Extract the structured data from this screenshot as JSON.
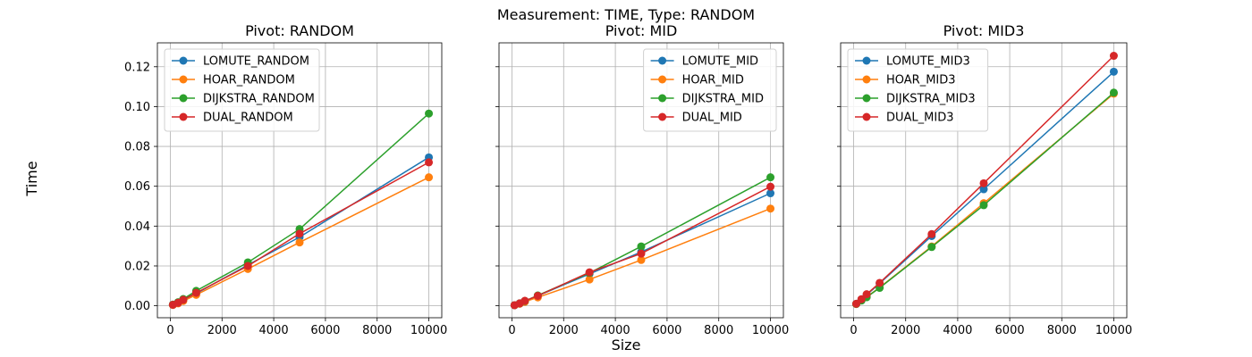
{
  "figure": {
    "suptitle": "Measurement: TIME, Type: RANDOM",
    "xlabel": "Size",
    "ylabel": "Time"
  },
  "colors": {
    "blue": "#1f77b4",
    "orange": "#ff7f0e",
    "green": "#2ca02c",
    "red": "#d62728",
    "grid": "#b0b0b0"
  },
  "chart_data": [
    {
      "type": "line",
      "title": "Pivot: RANDOM",
      "xlabel": "Size",
      "ylabel": "Time",
      "xlim": [
        -500,
        10500
      ],
      "ylim": [
        -0.006,
        0.132
      ],
      "xticks": [
        0,
        2000,
        4000,
        6000,
        8000,
        10000
      ],
      "yticks": [
        0.0,
        0.02,
        0.04,
        0.06,
        0.08,
        0.1,
        0.12
      ],
      "ytick_labels": [
        "0.00",
        "0.02",
        "0.04",
        "0.06",
        "0.08",
        "0.10",
        "0.12"
      ],
      "grid": true,
      "legend_position": "upper left",
      "x": [
        100,
        300,
        500,
        1000,
        3000,
        5000,
        10000
      ],
      "series": [
        {
          "name": "LOMUTE_RANDOM",
          "color": "#1f77b4",
          "values": [
            0.0005,
            0.0014,
            0.0028,
            0.0062,
            0.0205,
            0.0345,
            0.0745
          ]
        },
        {
          "name": "HOAR_RANDOM",
          "color": "#ff7f0e",
          "values": [
            0.0004,
            0.0012,
            0.0024,
            0.0055,
            0.0185,
            0.0318,
            0.0645
          ]
        },
        {
          "name": "DIJKSTRA_RANDOM",
          "color": "#2ca02c",
          "values": [
            0.0006,
            0.0018,
            0.0034,
            0.0075,
            0.0218,
            0.0385,
            0.0965
          ]
        },
        {
          "name": "DUAL_RANDOM",
          "color": "#d62728",
          "values": [
            0.0005,
            0.0015,
            0.003,
            0.0065,
            0.02,
            0.0362,
            0.072
          ]
        }
      ]
    },
    {
      "type": "line",
      "title": "Pivot: MID",
      "xlabel": "Size",
      "ylabel": "",
      "xlim": [
        -500,
        10500
      ],
      "ylim": [
        -0.006,
        0.132
      ],
      "xticks": [
        0,
        2000,
        4000,
        6000,
        8000,
        10000
      ],
      "yticks": [
        0.0,
        0.02,
        0.04,
        0.06,
        0.08,
        0.1,
        0.12
      ],
      "grid": true,
      "legend_position": "upper right",
      "x": [
        100,
        300,
        500,
        1000,
        3000,
        5000,
        10000
      ],
      "series": [
        {
          "name": "LOMUTE_MID",
          "color": "#1f77b4",
          "values": [
            0.0003,
            0.0012,
            0.0024,
            0.005,
            0.016,
            0.027,
            0.0565
          ]
        },
        {
          "name": "HOAR_MID",
          "color": "#ff7f0e",
          "values": [
            0.0003,
            0.001,
            0.002,
            0.0042,
            0.0132,
            0.023,
            0.0488
          ]
        },
        {
          "name": "DIJKSTRA_MID",
          "color": "#2ca02c",
          "values": [
            0.0003,
            0.0012,
            0.0024,
            0.0052,
            0.0165,
            0.0298,
            0.0645
          ]
        },
        {
          "name": "DUAL_MID",
          "color": "#d62728",
          "values": [
            0.0003,
            0.0012,
            0.0025,
            0.005,
            0.0168,
            0.0262,
            0.0598
          ]
        }
      ]
    },
    {
      "type": "line",
      "title": "Pivot: MID3",
      "xlabel": "Size",
      "ylabel": "",
      "xlim": [
        -500,
        10500
      ],
      "ylim": [
        -0.006,
        0.132
      ],
      "xticks": [
        0,
        2000,
        4000,
        6000,
        8000,
        10000
      ],
      "yticks": [
        0.0,
        0.02,
        0.04,
        0.06,
        0.08,
        0.1,
        0.12
      ],
      "grid": true,
      "legend_position": "upper left",
      "x": [
        100,
        300,
        500,
        1000,
        3000,
        5000,
        10000
      ],
      "series": [
        {
          "name": "LOMUTE_MID3",
          "color": "#1f77b4",
          "values": [
            0.001,
            0.0032,
            0.0055,
            0.0112,
            0.035,
            0.0585,
            0.1175
          ]
        },
        {
          "name": "HOAR_MID3",
          "color": "#ff7f0e",
          "values": [
            0.0009,
            0.0028,
            0.0045,
            0.0092,
            0.0298,
            0.0515,
            0.1065
          ]
        },
        {
          "name": "DIJKSTRA_MID3",
          "color": "#2ca02c",
          "values": [
            0.0009,
            0.0026,
            0.0043,
            0.009,
            0.0295,
            0.0505,
            0.107
          ]
        },
        {
          "name": "DUAL_MID3",
          "color": "#d62728",
          "values": [
            0.001,
            0.0033,
            0.0058,
            0.0115,
            0.036,
            0.0615,
            0.1255
          ]
        }
      ]
    }
  ]
}
